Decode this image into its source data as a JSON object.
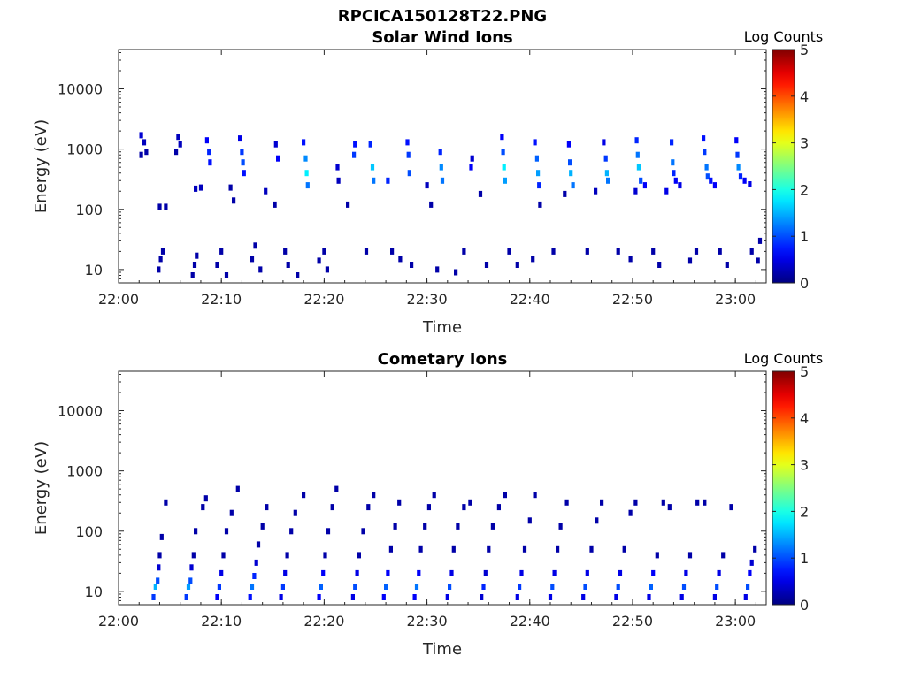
{
  "figure": {
    "title": "RPCICA150128T22.PNG"
  },
  "chart_data": [
    {
      "type": "heatmap",
      "title": "Solar Wind Ions",
      "xlabel": "Time",
      "ylabel": "Energy (eV)",
      "x_ticks": [
        "22:00",
        "22:10",
        "22:20",
        "22:30",
        "22:40",
        "22:50",
        "23:00"
      ],
      "y_scale": "log",
      "y_ticks": [
        10,
        100,
        1000,
        10000
      ],
      "y_tick_labels": [
        "10",
        "100",
        "1000",
        "10000"
      ],
      "ylim": [
        6,
        45000
      ],
      "xlim_minutes": [
        0,
        63
      ],
      "colorbar": {
        "label": "Log Counts",
        "min": 0,
        "max": 5,
        "ticks": [
          "0",
          "1",
          "2",
          "3",
          "4",
          "5"
        ],
        "colormap": "jet"
      },
      "time_ranges_minutes": [
        0,
        63
      ],
      "note_values": "Approximate log-count values per (time, energy) cell estimated from the image",
      "cells": [
        [
          2.2,
          800,
          0.2
        ],
        [
          2.2,
          1700,
          0.4
        ],
        [
          2.5,
          1300,
          0.3
        ],
        [
          2.7,
          900,
          0.2
        ],
        [
          5.6,
          900,
          0.2
        ],
        [
          5.8,
          1600,
          0.3
        ],
        [
          6.0,
          1200,
          0.3
        ],
        [
          3.9,
          10,
          0.2
        ],
        [
          4.1,
          15,
          0.2
        ],
        [
          4.3,
          20,
          0.2
        ],
        [
          7.2,
          8,
          0.2
        ],
        [
          7.4,
          12,
          0.2
        ],
        [
          7.6,
          17,
          0.2
        ],
        [
          4.0,
          110,
          0.2
        ],
        [
          4.6,
          110,
          0.2
        ],
        [
          7.5,
          220,
          0.3
        ],
        [
          8.0,
          230,
          0.3
        ],
        [
          8.6,
          1400,
          0.6
        ],
        [
          8.8,
          900,
          0.8
        ],
        [
          8.9,
          600,
          0.7
        ],
        [
          9.6,
          12,
          0.2
        ],
        [
          10.0,
          20,
          0.2
        ],
        [
          10.5,
          8,
          0.2
        ],
        [
          10.9,
          230,
          0.2
        ],
        [
          11.2,
          140,
          0.2
        ],
        [
          11.8,
          1500,
          0.5
        ],
        [
          12.0,
          900,
          0.9
        ],
        [
          12.1,
          600,
          1.0
        ],
        [
          12.2,
          400,
          0.7
        ],
        [
          13.0,
          15,
          0.2
        ],
        [
          13.3,
          25,
          0.2
        ],
        [
          13.8,
          10,
          0.2
        ],
        [
          14.3,
          200,
          0.3
        ],
        [
          15.3,
          1200,
          0.4
        ],
        [
          15.5,
          700,
          0.6
        ],
        [
          15.2,
          120,
          0.2
        ],
        [
          16.2,
          20,
          0.2
        ],
        [
          16.5,
          12,
          0.2
        ],
        [
          17.4,
          8,
          0.2
        ],
        [
          18.0,
          1300,
          0.7
        ],
        [
          18.2,
          700,
          1.3
        ],
        [
          18.3,
          400,
          1.8
        ],
        [
          18.4,
          250,
          1.2
        ],
        [
          19.5,
          14,
          0.2
        ],
        [
          20.0,
          20,
          0.2
        ],
        [
          20.3,
          10,
          0.2
        ],
        [
          21.3,
          500,
          0.4
        ],
        [
          21.4,
          300,
          0.3
        ],
        [
          22.3,
          120,
          0.2
        ],
        [
          22.9,
          800,
          0.9
        ],
        [
          23.0,
          1200,
          0.7
        ],
        [
          24.1,
          20,
          0.2
        ],
        [
          24.5,
          1200,
          0.8
        ],
        [
          24.7,
          500,
          1.6
        ],
        [
          24.8,
          300,
          1.2
        ],
        [
          26.2,
          300,
          0.8
        ],
        [
          26.6,
          20,
          0.2
        ],
        [
          27.4,
          15,
          0.2
        ],
        [
          28.1,
          1300,
          0.7
        ],
        [
          28.2,
          800,
          0.9
        ],
        [
          28.3,
          400,
          1.0
        ],
        [
          28.5,
          12,
          0.2
        ],
        [
          30.0,
          250,
          0.3
        ],
        [
          30.4,
          120,
          0.2
        ],
        [
          31.0,
          10,
          0.2
        ],
        [
          31.3,
          900,
          0.8
        ],
        [
          31.4,
          500,
          1.3
        ],
        [
          31.5,
          300,
          1.2
        ],
        [
          32.8,
          9,
          0.2
        ],
        [
          33.6,
          20,
          0.2
        ],
        [
          34.3,
          500,
          0.6
        ],
        [
          34.4,
          700,
          0.4
        ],
        [
          35.2,
          180,
          0.2
        ],
        [
          35.8,
          12,
          0.2
        ],
        [
          37.3,
          1600,
          0.6
        ],
        [
          37.4,
          900,
          1.0
        ],
        [
          37.5,
          500,
          1.8
        ],
        [
          37.6,
          300,
          1.4
        ],
        [
          38.0,
          20,
          0.2
        ],
        [
          38.8,
          12,
          0.2
        ],
        [
          40.3,
          15,
          0.2
        ],
        [
          40.5,
          1300,
          0.7
        ],
        [
          40.7,
          700,
          1.1
        ],
        [
          40.8,
          400,
          1.4
        ],
        [
          40.9,
          250,
          0.8
        ],
        [
          41.0,
          120,
          0.2
        ],
        [
          42.3,
          20,
          0.2
        ],
        [
          43.4,
          180,
          0.2
        ],
        [
          43.8,
          1200,
          0.6
        ],
        [
          43.9,
          600,
          1.0
        ],
        [
          44.0,
          400,
          1.5
        ],
        [
          44.2,
          250,
          1.2
        ],
        [
          45.6,
          20,
          0.2
        ],
        [
          46.4,
          200,
          0.3
        ],
        [
          47.2,
          1300,
          0.5
        ],
        [
          47.4,
          700,
          0.9
        ],
        [
          47.5,
          400,
          1.5
        ],
        [
          47.6,
          300,
          1.2
        ],
        [
          48.6,
          20,
          0.2
        ],
        [
          49.8,
          15,
          0.2
        ],
        [
          50.3,
          200,
          0.4
        ],
        [
          50.4,
          1400,
          0.8
        ],
        [
          50.5,
          800,
          1.2
        ],
        [
          50.6,
          500,
          1.6
        ],
        [
          50.8,
          300,
          1.0
        ],
        [
          51.2,
          250,
          0.6
        ],
        [
          52.0,
          20,
          0.2
        ],
        [
          52.6,
          12,
          0.2
        ],
        [
          53.3,
          200,
          0.5
        ],
        [
          53.8,
          1300,
          0.8
        ],
        [
          53.9,
          600,
          1.2
        ],
        [
          54.0,
          400,
          0.8
        ],
        [
          54.2,
          300,
          0.6
        ],
        [
          54.6,
          250,
          0.5
        ],
        [
          55.6,
          14,
          0.2
        ],
        [
          56.2,
          20,
          0.2
        ],
        [
          56.9,
          1500,
          0.7
        ],
        [
          57.0,
          900,
          0.9
        ],
        [
          57.2,
          500,
          1.2
        ],
        [
          57.3,
          350,
          1.0
        ],
        [
          57.6,
          300,
          0.7
        ],
        [
          58.0,
          250,
          0.6
        ],
        [
          58.5,
          20,
          0.2
        ],
        [
          59.2,
          12,
          0.2
        ],
        [
          60.1,
          1400,
          0.6
        ],
        [
          60.2,
          800,
          0.9
        ],
        [
          60.3,
          500,
          1.3
        ],
        [
          60.5,
          350,
          0.8
        ],
        [
          60.9,
          300,
          0.6
        ],
        [
          61.4,
          260,
          0.5
        ],
        [
          61.6,
          20,
          0.2
        ],
        [
          62.2,
          14,
          0.2
        ],
        [
          62.4,
          30,
          0.2
        ]
      ]
    },
    {
      "type": "heatmap",
      "title": "Cometary Ions",
      "xlabel": "Time",
      "ylabel": "Energy (eV)",
      "x_ticks": [
        "22:00",
        "22:10",
        "22:20",
        "22:30",
        "22:40",
        "22:50",
        "23:00"
      ],
      "y_scale": "log",
      "y_ticks": [
        10,
        100,
        1000,
        10000
      ],
      "y_tick_labels": [
        "10",
        "100",
        "1000",
        "10000"
      ],
      "ylim": [
        6,
        45000
      ],
      "xlim_minutes": [
        0,
        63
      ],
      "colorbar": {
        "label": "Log Counts",
        "min": 0,
        "max": 5,
        "ticks": [
          "0",
          "1",
          "2",
          "3",
          "4",
          "5"
        ],
        "colormap": "jet"
      },
      "note_values": "Approximate log-count values per (time, energy) cell estimated from the image",
      "cells": [
        [
          3.4,
          8,
          0.9
        ],
        [
          3.6,
          12,
          1.5
        ],
        [
          3.8,
          15,
          1.0
        ],
        [
          3.9,
          25,
          0.4
        ],
        [
          4.0,
          40,
          0.2
        ],
        [
          4.2,
          80,
          0.2
        ],
        [
          4.6,
          300,
          0.2
        ],
        [
          6.6,
          8,
          0.9
        ],
        [
          6.8,
          12,
          1.4
        ],
        [
          7.0,
          15,
          1.0
        ],
        [
          7.1,
          25,
          0.4
        ],
        [
          7.3,
          40,
          0.2
        ],
        [
          7.5,
          100,
          0.2
        ],
        [
          8.2,
          250,
          0.2
        ],
        [
          8.5,
          350,
          0.2
        ],
        [
          9.6,
          8,
          0.6
        ],
        [
          9.8,
          12,
          0.9
        ],
        [
          10.0,
          20,
          0.5
        ],
        [
          10.2,
          40,
          0.2
        ],
        [
          10.5,
          100,
          0.2
        ],
        [
          11.0,
          200,
          0.2
        ],
        [
          11.6,
          500,
          0.2
        ],
        [
          12.8,
          8,
          0.7
        ],
        [
          13.0,
          12,
          1.2
        ],
        [
          13.2,
          18,
          0.8
        ],
        [
          13.4,
          30,
          0.4
        ],
        [
          13.6,
          60,
          0.2
        ],
        [
          14.0,
          120,
          0.2
        ],
        [
          14.4,
          250,
          0.2
        ],
        [
          15.8,
          8,
          0.5
        ],
        [
          16.0,
          12,
          0.9
        ],
        [
          16.2,
          20,
          0.5
        ],
        [
          16.4,
          40,
          0.2
        ],
        [
          16.8,
          100,
          0.2
        ],
        [
          17.2,
          200,
          0.2
        ],
        [
          18.0,
          400,
          0.2
        ],
        [
          19.5,
          8,
          0.6
        ],
        [
          19.7,
          12,
          1.1
        ],
        [
          19.9,
          20,
          0.6
        ],
        [
          20.1,
          40,
          0.2
        ],
        [
          20.4,
          100,
          0.2
        ],
        [
          20.8,
          250,
          0.2
        ],
        [
          21.2,
          500,
          0.2
        ],
        [
          22.8,
          8,
          0.5
        ],
        [
          23.0,
          12,
          1.0
        ],
        [
          23.2,
          20,
          0.5
        ],
        [
          23.4,
          40,
          0.2
        ],
        [
          23.8,
          100,
          0.2
        ],
        [
          24.3,
          250,
          0.2
        ],
        [
          24.8,
          400,
          0.2
        ],
        [
          25.8,
          8,
          0.6
        ],
        [
          26.0,
          12,
          1.1
        ],
        [
          26.2,
          20,
          0.6
        ],
        [
          26.5,
          50,
          0.2
        ],
        [
          26.9,
          120,
          0.2
        ],
        [
          27.3,
          300,
          0.2
        ],
        [
          28.8,
          8,
          0.6
        ],
        [
          29.0,
          12,
          1.2
        ],
        [
          29.2,
          20,
          0.6
        ],
        [
          29.4,
          50,
          0.2
        ],
        [
          29.8,
          120,
          0.2
        ],
        [
          30.2,
          250,
          0.2
        ],
        [
          30.7,
          400,
          0.2
        ],
        [
          32.0,
          8,
          0.5
        ],
        [
          32.2,
          12,
          1.0
        ],
        [
          32.4,
          20,
          0.5
        ],
        [
          32.6,
          50,
          0.2
        ],
        [
          33.0,
          120,
          0.2
        ],
        [
          33.6,
          250,
          0.2
        ],
        [
          34.2,
          300,
          0.2
        ],
        [
          35.3,
          8,
          0.4
        ],
        [
          35.5,
          12,
          0.8
        ],
        [
          35.7,
          20,
          0.4
        ],
        [
          36.0,
          50,
          0.2
        ],
        [
          36.4,
          120,
          0.2
        ],
        [
          37.0,
          250,
          0.2
        ],
        [
          37.6,
          400,
          0.2
        ],
        [
          38.8,
          8,
          0.5
        ],
        [
          39.0,
          12,
          0.9
        ],
        [
          39.2,
          20,
          0.5
        ],
        [
          39.5,
          50,
          0.2
        ],
        [
          40.0,
          150,
          0.2
        ],
        [
          40.5,
          400,
          0.2
        ],
        [
          42.0,
          8,
          0.5
        ],
        [
          42.2,
          12,
          1.0
        ],
        [
          42.4,
          20,
          0.5
        ],
        [
          42.7,
          50,
          0.2
        ],
        [
          43.0,
          120,
          0.2
        ],
        [
          43.6,
          300,
          0.2
        ],
        [
          45.2,
          8,
          0.5
        ],
        [
          45.4,
          12,
          1.0
        ],
        [
          45.6,
          20,
          0.5
        ],
        [
          46.0,
          50,
          0.2
        ],
        [
          46.5,
          150,
          0.2
        ],
        [
          47.0,
          300,
          0.2
        ],
        [
          48.4,
          8,
          0.5
        ],
        [
          48.6,
          12,
          1.0
        ],
        [
          48.8,
          20,
          0.5
        ],
        [
          49.2,
          50,
          0.2
        ],
        [
          49.8,
          200,
          0.2
        ],
        [
          50.3,
          300,
          0.2
        ],
        [
          51.6,
          8,
          0.5
        ],
        [
          51.8,
          12,
          1.1
        ],
        [
          52.0,
          20,
          0.6
        ],
        [
          52.4,
          40,
          0.2
        ],
        [
          53.0,
          300,
          0.2
        ],
        [
          53.6,
          250,
          0.2
        ],
        [
          54.8,
          8,
          0.5
        ],
        [
          55.0,
          12,
          1.0
        ],
        [
          55.2,
          20,
          0.5
        ],
        [
          55.6,
          40,
          0.2
        ],
        [
          56.3,
          300,
          0.2
        ],
        [
          57.0,
          300,
          0.2
        ],
        [
          58.0,
          8,
          0.5
        ],
        [
          58.2,
          12,
          1.0
        ],
        [
          58.4,
          20,
          0.5
        ],
        [
          58.8,
          40,
          0.2
        ],
        [
          59.6,
          250,
          0.2
        ],
        [
          61.0,
          8,
          0.5
        ],
        [
          61.2,
          12,
          1.0
        ],
        [
          61.4,
          20,
          0.6
        ],
        [
          61.6,
          30,
          0.4
        ],
        [
          61.9,
          50,
          0.2
        ]
      ]
    }
  ]
}
